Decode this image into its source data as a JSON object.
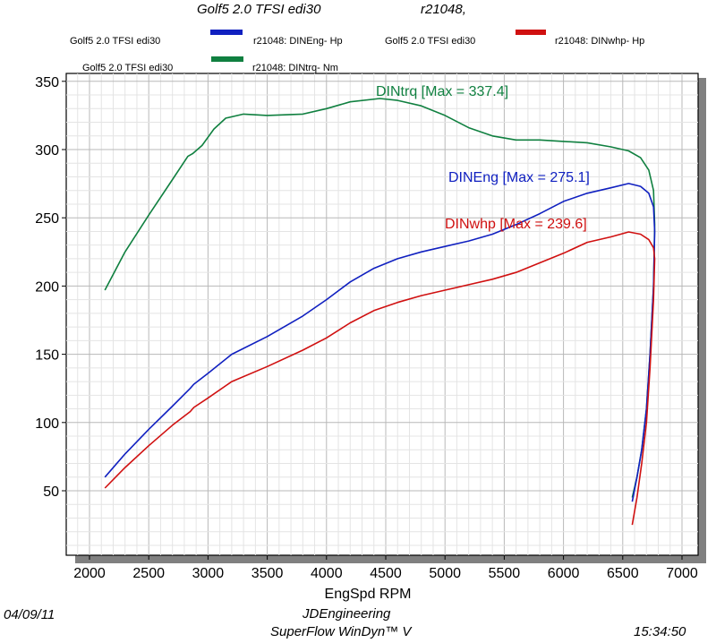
{
  "header": {
    "title_left": "Golf5 2.0 TFSI edi30",
    "title_right": "r21048,"
  },
  "legend": [
    {
      "run": "Golf5 2.0 TFSI edi30",
      "label": "r21048: DINEng- Hp",
      "color": "#1020c0"
    },
    {
      "run": "Golf5 2.0 TFSI edi30",
      "label": "r21048: DINwhp- Hp",
      "color": "#d01010"
    },
    {
      "run": "Golf5 2.0 TFSI edi30",
      "label": "r21048: DINtrq- Nm",
      "color": "#108040"
    }
  ],
  "footer": {
    "date": "04/09/11",
    "company": "JDEngineering",
    "software": "SuperFlow WinDyn™ V",
    "time": "15:34:50"
  },
  "chart_data": {
    "type": "line",
    "title": "",
    "xlabel": "EngSpd  RPM",
    "ylabel": "",
    "xlim": [
      1900,
      7000
    ],
    "ylim": [
      0,
      350
    ],
    "x_ticks": [
      2000,
      2500,
      3000,
      3500,
      4000,
      4500,
      5000,
      5500,
      6000,
      6500,
      7000
    ],
    "y_ticks": [
      50,
      100,
      150,
      200,
      250,
      300,
      350
    ],
    "grid": true,
    "series": [
      {
        "name": "DINtrq",
        "annotation": "DINtrq [Max = 337.4]",
        "color": "#108040",
        "x": [
          2130,
          2300,
          2500,
          2700,
          2830,
          2870,
          2950,
          3050,
          3150,
          3300,
          3500,
          3800,
          4000,
          4200,
          4450,
          4600,
          4800,
          5000,
          5200,
          5400,
          5600,
          5800,
          6000,
          6200,
          6400,
          6550,
          6650,
          6720,
          6760,
          6770,
          6760,
          6730,
          6700,
          6660,
          6620,
          6580
        ],
        "y": [
          197,
          225,
          252,
          278,
          295,
          297,
          303,
          315,
          323,
          326,
          325,
          326,
          330,
          335,
          337.4,
          336,
          332,
          325,
          316,
          310,
          307,
          307,
          306,
          305,
          302,
          299,
          294,
          285,
          270,
          245,
          200,
          150,
          110,
          80,
          60,
          45
        ]
      },
      {
        "name": "DINEng",
        "annotation": "DINEng [Max = 275.1]",
        "color": "#1020c0",
        "x": [
          2130,
          2300,
          2500,
          2700,
          2850,
          2880,
          3000,
          3200,
          3500,
          3800,
          4000,
          4200,
          4400,
          4600,
          4800,
          5000,
          5200,
          5400,
          5600,
          5800,
          6000,
          6200,
          6400,
          6550,
          6650,
          6720,
          6760,
          6770,
          6760,
          6730,
          6700,
          6660,
          6620,
          6580
        ],
        "y": [
          60,
          77,
          95,
          112,
          125,
          128,
          136,
          150,
          163,
          178,
          190,
          203,
          213,
          220,
          225,
          229,
          233,
          238,
          245,
          253,
          262,
          268,
          272,
          275.1,
          273,
          268,
          258,
          240,
          200,
          150,
          110,
          80,
          60,
          42
        ]
      },
      {
        "name": "DINwhp",
        "annotation": "DINwhp [Max = 239.6]",
        "color": "#d01010",
        "x": [
          2130,
          2300,
          2500,
          2700,
          2850,
          2880,
          3000,
          3200,
          3500,
          3800,
          4000,
          4200,
          4400,
          4600,
          4800,
          5000,
          5200,
          5400,
          5600,
          5800,
          6000,
          6200,
          6400,
          6550,
          6650,
          6720,
          6760,
          6770,
          6760,
          6730,
          6700,
          6660,
          6620,
          6580
        ],
        "y": [
          52,
          67,
          83,
          98,
          108,
          111,
          118,
          130,
          141,
          153,
          162,
          173,
          182,
          188,
          193,
          197,
          201,
          205,
          210,
          217,
          224,
          232,
          236,
          239.6,
          238,
          234,
          228,
          220,
          190,
          140,
          100,
          70,
          45,
          25
        ]
      }
    ]
  }
}
